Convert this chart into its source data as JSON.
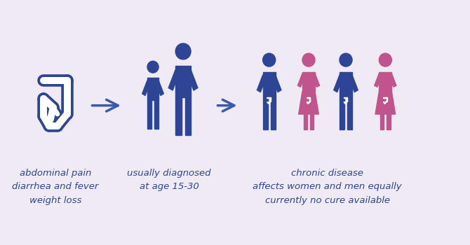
{
  "background_color": "#f0eaf4",
  "blue_color": "#2e4494",
  "pink_color": "#c0548c",
  "text_color": "#2e4494",
  "arrow_color": "#3a5aad",
  "text1_lines": [
    "abdominal pain",
    "diarrhea and fever",
    "weight loss"
  ],
  "text2_lines": [
    "usually diagnosed",
    "at age 15-30"
  ],
  "text3_lines": [
    "chronic disease",
    "affects women and men equally",
    "currently no cure available"
  ],
  "fontsize": 11,
  "fig_width": 6.7,
  "fig_height": 3.5
}
